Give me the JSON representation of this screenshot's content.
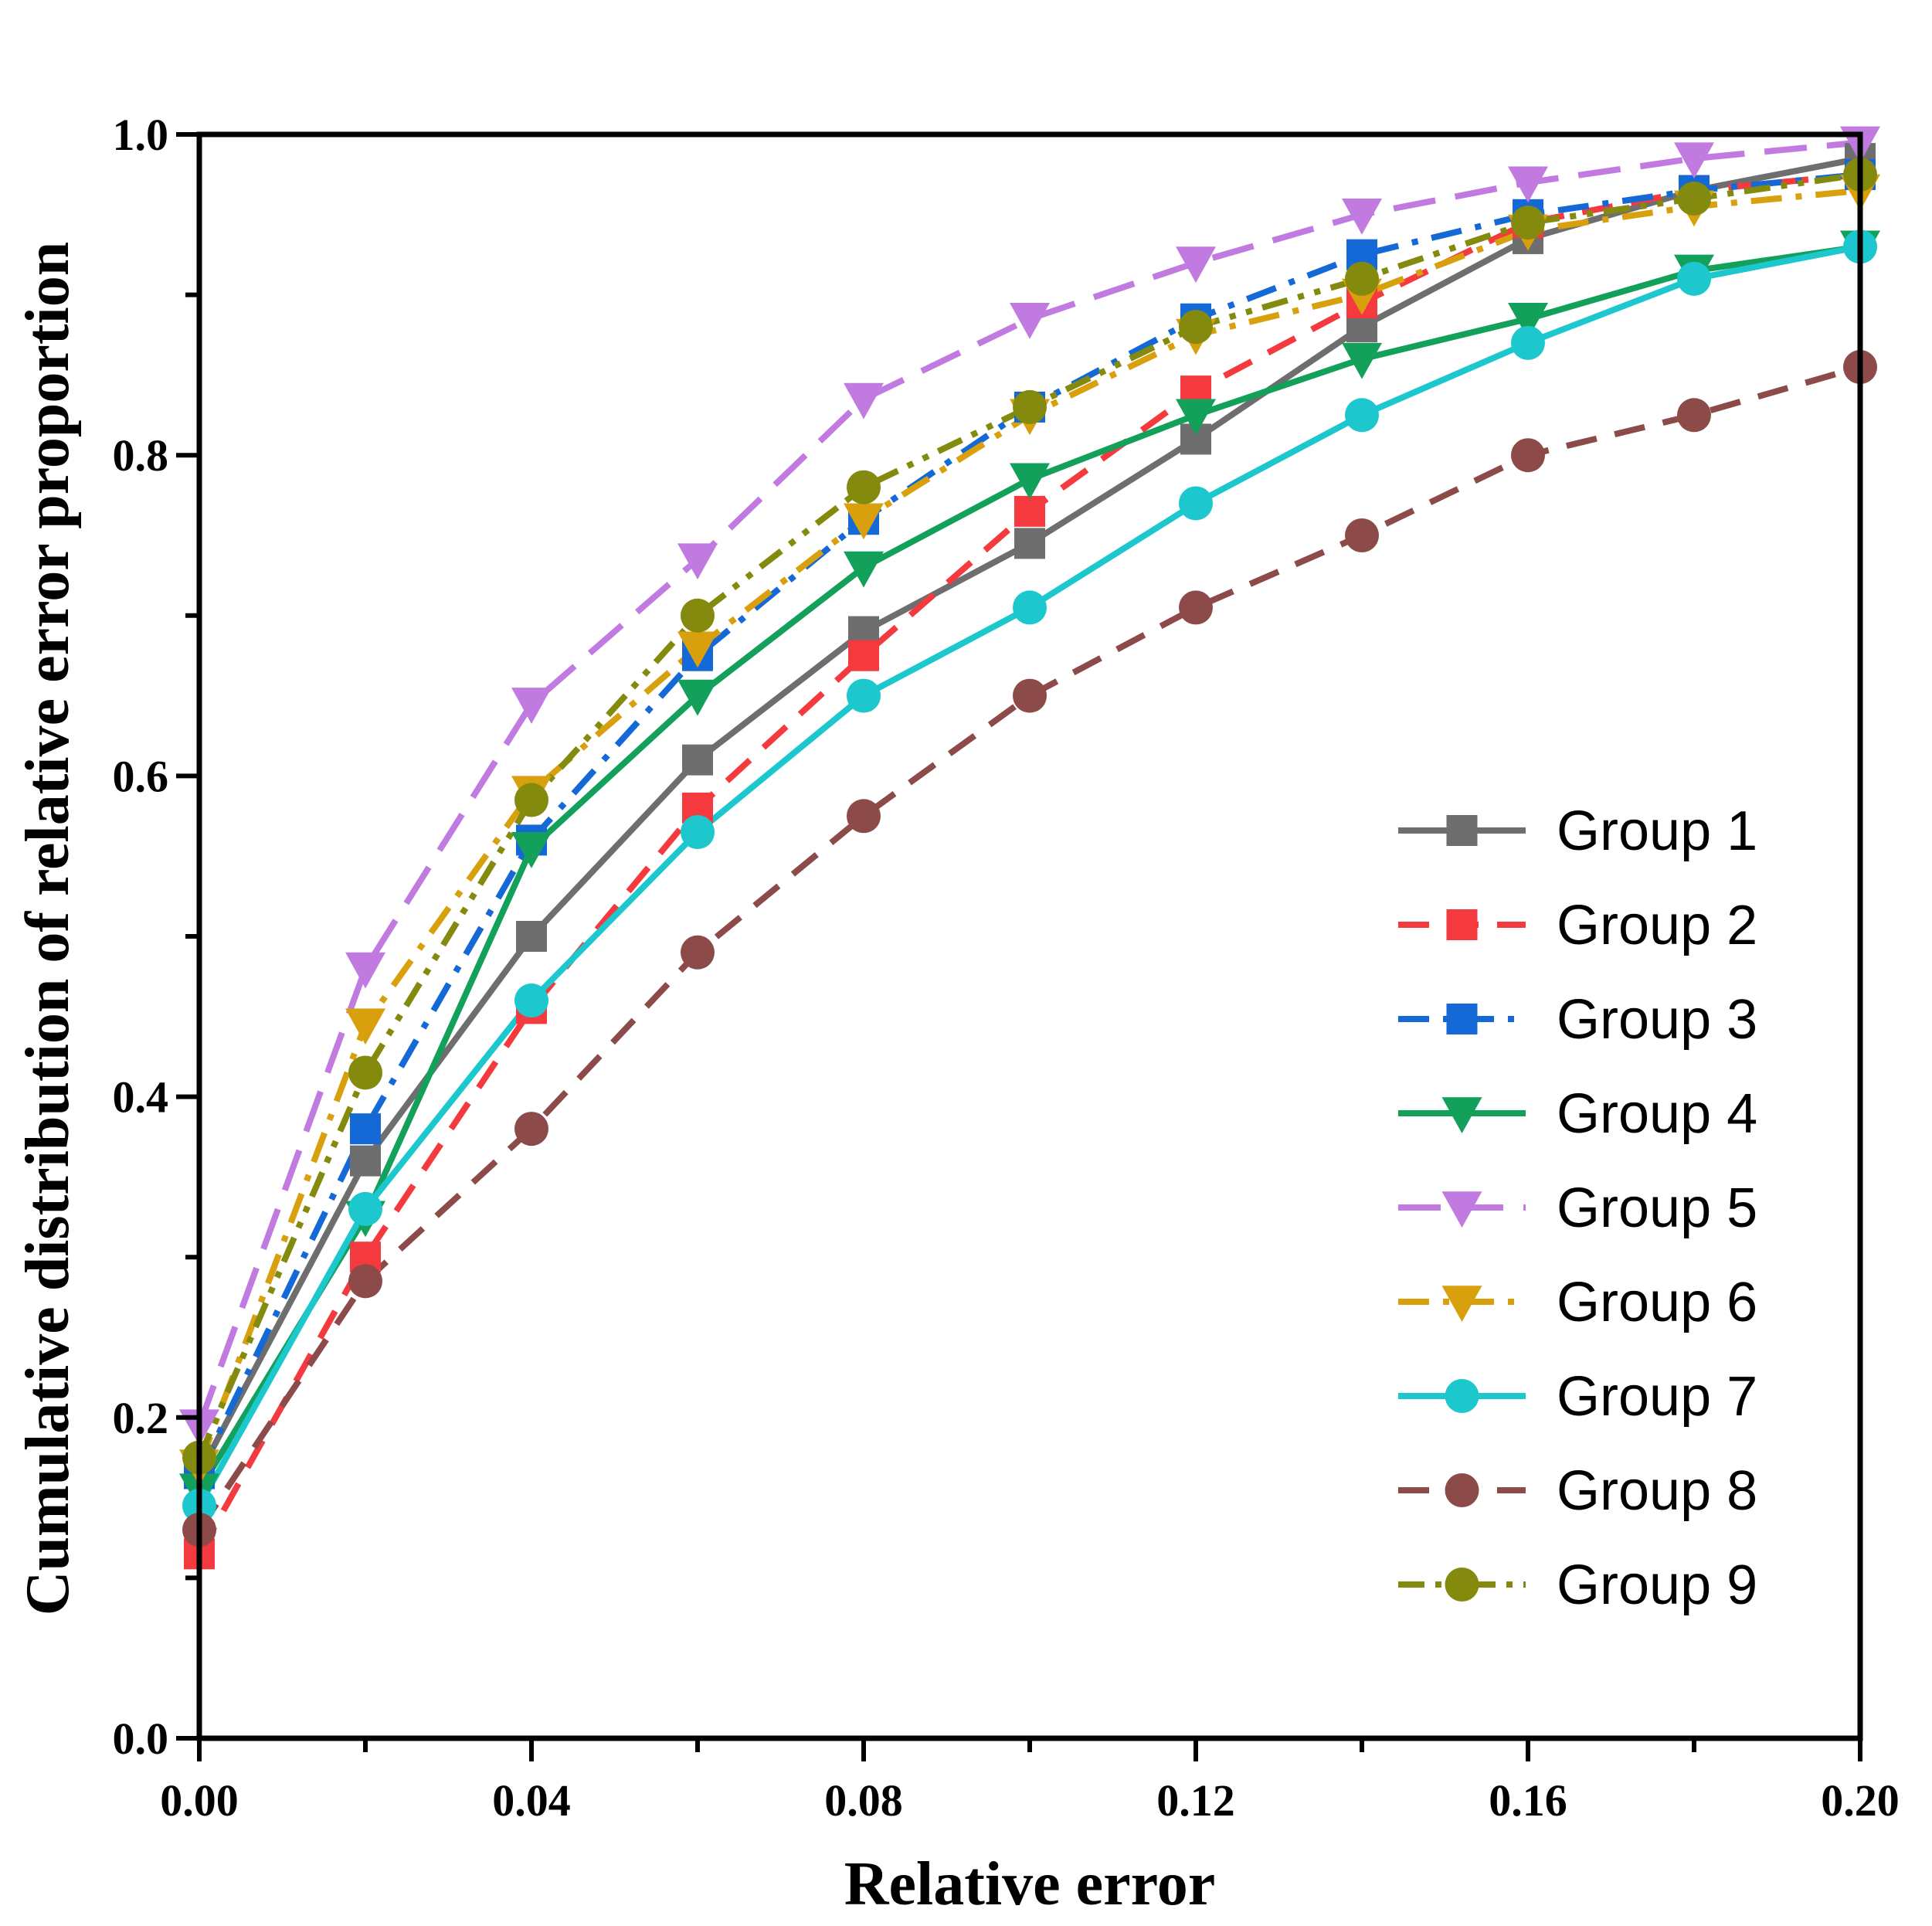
{
  "chart_data": {
    "type": "line",
    "title": "",
    "xlabel": "Relative error",
    "ylabel": "Cumulative distribution of relative error proportion",
    "x": [
      0.0,
      0.02,
      0.04,
      0.06,
      0.08,
      0.1,
      0.12,
      0.14,
      0.16,
      0.18,
      0.2
    ],
    "xlim": [
      0.0,
      0.2
    ],
    "ylim": [
      0.0,
      1.0
    ],
    "x_ticks": [
      "0.00",
      "0.04",
      "0.08",
      "0.12",
      "0.16",
      "0.20"
    ],
    "y_ticks": [
      "0.0",
      "0.2",
      "0.4",
      "0.6",
      "0.8",
      "1.0"
    ],
    "grid": false,
    "legend_position": "bottom-right",
    "series": [
      {
        "name": "Group 1",
        "color": "#6e6e6e",
        "marker": "square",
        "dash": "solid",
        "values": [
          0.165,
          0.36,
          0.5,
          0.61,
          0.69,
          0.745,
          0.81,
          0.88,
          0.935,
          0.965,
          0.985
        ]
      },
      {
        "name": "Group 2",
        "color": "#f53a3f",
        "marker": "square",
        "dash": "dash",
        "values": [
          0.115,
          0.3,
          0.455,
          0.58,
          0.675,
          0.765,
          0.84,
          0.895,
          0.945,
          0.965,
          0.975
        ]
      },
      {
        "name": "Group 3",
        "color": "#1469d7",
        "marker": "square",
        "dash": "dashdot",
        "values": [
          0.165,
          0.38,
          0.56,
          0.675,
          0.76,
          0.83,
          0.885,
          0.925,
          0.95,
          0.965,
          0.975
        ]
      },
      {
        "name": "Group 4",
        "color": "#13a05a",
        "marker": "triangle-down",
        "dash": "solid",
        "values": [
          0.155,
          0.325,
          0.555,
          0.65,
          0.73,
          0.785,
          0.825,
          0.86,
          0.885,
          0.915,
          0.93
        ]
      },
      {
        "name": "Group 5",
        "color": "#c07ae0",
        "marker": "triangle-down",
        "dash": "longdash",
        "values": [
          0.195,
          0.48,
          0.645,
          0.735,
          0.835,
          0.885,
          0.92,
          0.95,
          0.97,
          0.985,
          0.995
        ]
      },
      {
        "name": "Group 6",
        "color": "#d9a00e",
        "marker": "triangle-down",
        "dash": "dashdot",
        "values": [
          0.17,
          0.445,
          0.59,
          0.68,
          0.76,
          0.825,
          0.875,
          0.9,
          0.94,
          0.955,
          0.965
        ]
      },
      {
        "name": "Group 7",
        "color": "#1cc7cd",
        "marker": "circle",
        "dash": "solid",
        "values": [
          0.145,
          0.33,
          0.46,
          0.565,
          0.65,
          0.705,
          0.77,
          0.825,
          0.87,
          0.91,
          0.93
        ]
      },
      {
        "name": "Group 8",
        "color": "#8c4a48",
        "marker": "circle",
        "dash": "dash",
        "values": [
          0.13,
          0.285,
          0.38,
          0.49,
          0.575,
          0.65,
          0.705,
          0.75,
          0.8,
          0.825,
          0.855
        ]
      },
      {
        "name": "Group 9",
        "color": "#848a0e",
        "marker": "circle",
        "dash": "dashdotdot",
        "values": [
          0.175,
          0.415,
          0.585,
          0.7,
          0.78,
          0.83,
          0.88,
          0.91,
          0.945,
          0.96,
          0.975
        ]
      }
    ]
  }
}
